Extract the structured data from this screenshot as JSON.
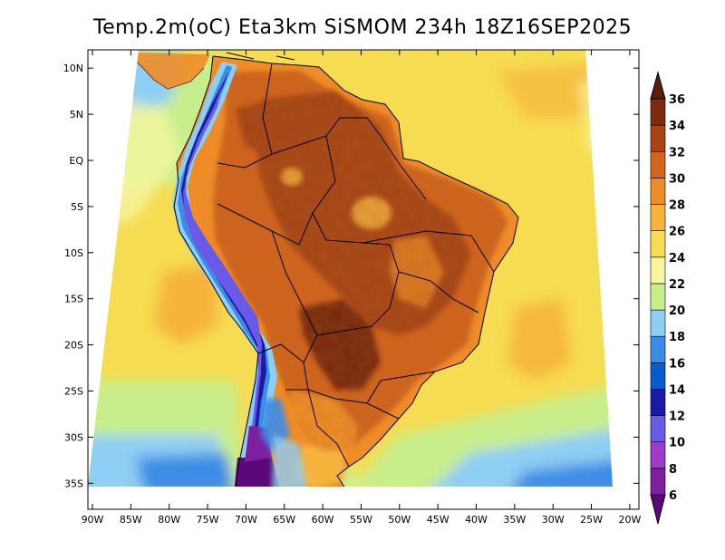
{
  "title": "Temp.2m(oC) Eta3km SiSMOM 234h 18Z16SEP2025",
  "lat_ticks": [
    "10N",
    "5N",
    "EQ",
    "5S",
    "10S",
    "15S",
    "20S",
    "25S",
    "30S",
    "35S"
  ],
  "lat_values": [
    10,
    5,
    0,
    -5,
    -10,
    -15,
    -20,
    -25,
    -30,
    -35
  ],
  "lon_ticks": [
    "90W",
    "85W",
    "80W",
    "75W",
    "70W",
    "65W",
    "60W",
    "55W",
    "50W",
    "45W",
    "40W",
    "35W",
    "30W",
    "25W",
    "20W"
  ],
  "lon_values": [
    -90,
    -85,
    -80,
    -75,
    -70,
    -65,
    -60,
    -55,
    -50,
    -45,
    -40,
    -35,
    -30,
    -25,
    -20
  ],
  "colorbar": {
    "labels": [
      "6",
      "8",
      "10",
      "12",
      "14",
      "16",
      "18",
      "20",
      "22",
      "24",
      "26",
      "28",
      "30",
      "32",
      "34",
      "36"
    ],
    "colors": [
      "#5a0a78",
      "#7e1fa0",
      "#9a3cc4",
      "#6a5ae8",
      "#1a1aa8",
      "#0a5ad0",
      "#3c8ce6",
      "#8ecdf4",
      "#c8ee8c",
      "#f6f6a0",
      "#f6dc50",
      "#f6b43c",
      "#ee8c28",
      "#d2641e",
      "#a84414",
      "#7a2c0c",
      "#5a1e08"
    ]
  }
}
